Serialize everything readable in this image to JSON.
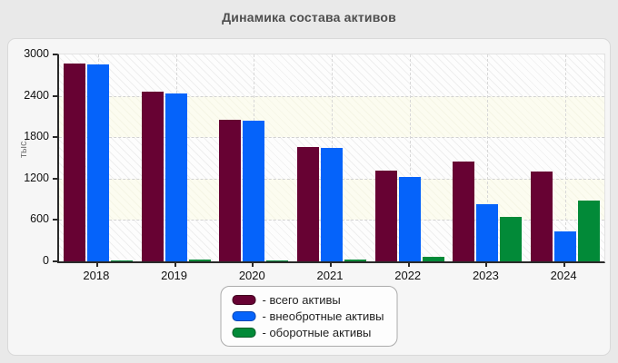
{
  "title": "Динамика состава активов",
  "colors": {
    "page_background": "#e9e9e9",
    "card_background": "#f6f6f6",
    "axis": "#2a2a2a",
    "grid": "#d2d2d2"
  },
  "chart_data": {
    "type": "bar",
    "title": "Динамика состава активов",
    "xlabel": "",
    "ylabel": "тыс.",
    "ylim": [
      0,
      3000
    ],
    "yticks": [
      0,
      600,
      1200,
      1800,
      2400,
      3000
    ],
    "grid": "dashed horizontal at yticks and dashed vertical at category centers, alternating hatched bands",
    "legend_position": "bottom-center",
    "categories": [
      "2018",
      "2019",
      "2020",
      "2021",
      "2022",
      "2023",
      "2024"
    ],
    "series": [
      {
        "name": "всего активы",
        "legend_label": "- всего активы",
        "color": "#670233",
        "border_color": "#40001f",
        "values": [
          2870,
          2460,
          2050,
          1660,
          1310,
          1450,
          1300
        ]
      },
      {
        "name": "внеобротные активы",
        "legend_label": "- внеобротные активы",
        "color": "#0563fa",
        "border_color": "#0345b5",
        "values": [
          2850,
          2440,
          2040,
          1640,
          1230,
          830,
          430
        ]
      },
      {
        "name": "оборотные активы",
        "legend_label": "- оборотные активы",
        "color": "#028a38",
        "border_color": "#015c25",
        "values": [
          15,
          25,
          10,
          20,
          70,
          640,
          880
        ]
      }
    ]
  }
}
